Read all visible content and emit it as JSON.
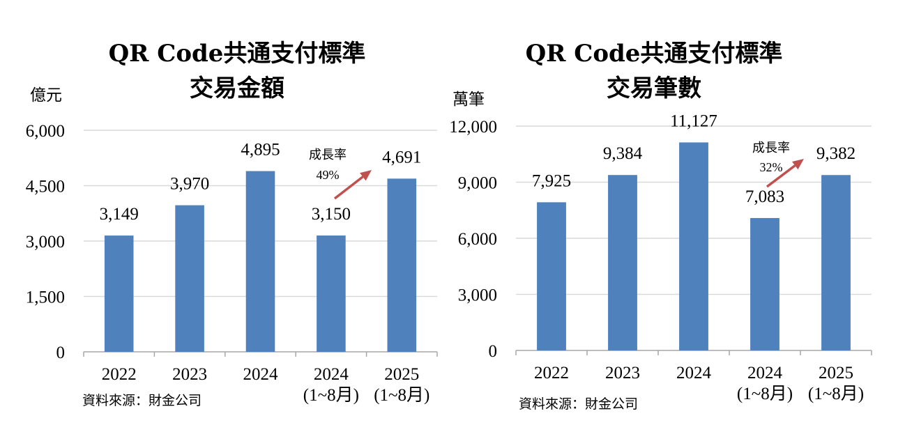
{
  "chart_data": [
    {
      "type": "bar",
      "title_lines": [
        "QR Code共通支付標準",
        "交易金額"
      ],
      "unit_label": "億元",
      "categories": [
        [
          "2022"
        ],
        [
          "2023"
        ],
        [
          "2024"
        ],
        [
          "2024",
          "(1~8月)"
        ],
        [
          "2025",
          "(1~8月)"
        ]
      ],
      "values": [
        3149,
        3970,
        4895,
        3150,
        4691
      ],
      "value_labels": [
        "3,149",
        "3,970",
        "4,895",
        "3,150",
        "4,691"
      ],
      "ylim": [
        0,
        6000
      ],
      "yticks": [
        0,
        1500,
        3000,
        4500,
        6000
      ],
      "ytick_labels": [
        "0",
        "1,500",
        "3,000",
        "4,500",
        "6,000"
      ],
      "grid": true,
      "bar_color": "#4F81BD",
      "growth_annotation": {
        "label": "成長率",
        "value": "49%",
        "from_index": 3,
        "to_index": 4,
        "arrow_color": "#C0504D"
      },
      "source": "資料來源：財金公司"
    },
    {
      "type": "bar",
      "title_lines": [
        "QR Code共通支付標準",
        "交易筆數"
      ],
      "unit_label": "萬筆",
      "categories": [
        [
          "2022"
        ],
        [
          "2023"
        ],
        [
          "2024"
        ],
        [
          "2024",
          "(1~8月)"
        ],
        [
          "2025",
          "(1~8月)"
        ]
      ],
      "values": [
        7925,
        9384,
        11127,
        7083,
        9382
      ],
      "value_labels": [
        "7,925",
        "9,384",
        "11,127",
        "7,083",
        "9,382"
      ],
      "ylim": [
        0,
        12000
      ],
      "yticks": [
        0,
        3000,
        6000,
        9000,
        12000
      ],
      "ytick_labels": [
        "0",
        "3,000",
        "6,000",
        "9,000",
        "12,000"
      ],
      "grid": true,
      "bar_color": "#4F81BD",
      "growth_annotation": {
        "label": "成長率",
        "value": "32%",
        "from_index": 3,
        "to_index": 4,
        "arrow_color": "#C0504D"
      },
      "source": "資料來源：財金公司"
    }
  ]
}
